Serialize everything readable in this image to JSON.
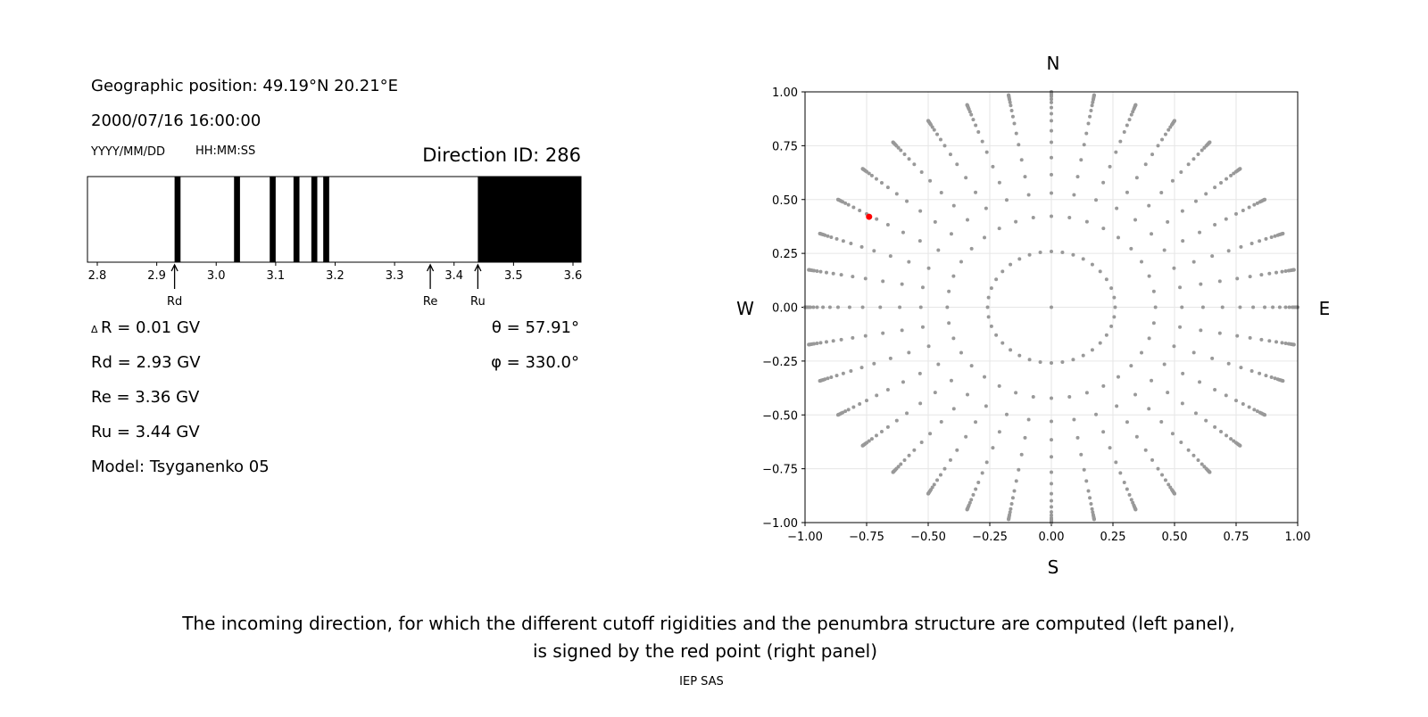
{
  "left_panel": {
    "geo_position": "Geographic position: 49.19°N 20.21°E",
    "datetime": "2000/07/16 16:00:00",
    "date_format": "YYYY/MM/DD",
    "time_format": "HH:MM:SS",
    "direction_id": "Direction ID: 286",
    "delta_r": "R = 0.01 GV",
    "delta_symbol": "Δ",
    "rd": "Rd = 2.93 GV",
    "re": "Re = 3.36 GV",
    "ru": "Ru = 3.44 GV",
    "model": "Model: Tsyganenko 05",
    "theta": "θ = 57.91°",
    "phi": "φ = 330.0°"
  },
  "chart_data": [
    {
      "type": "bar",
      "subtype": "penumbra",
      "xlim": [
        2.7835,
        3.6135
      ],
      "xticks": [
        2.8,
        2.9,
        3.0,
        3.1,
        3.2,
        3.3,
        3.4,
        3.5,
        3.6
      ],
      "xtick_labels": [
        "2.8",
        "2.9",
        "3.0",
        "3.1",
        "3.2",
        "3.3",
        "3.4",
        "3.5",
        "3.6"
      ],
      "forbidden_bands": [
        [
          2.93,
          2.94
        ],
        [
          3.03,
          3.04
        ],
        [
          3.09,
          3.1
        ],
        [
          3.13,
          3.14
        ],
        [
          3.16,
          3.17
        ],
        [
          3.18,
          3.19
        ],
        [
          3.44,
          3.6135
        ]
      ],
      "band_color": "#000000",
      "markers": [
        {
          "label": "Rd",
          "value": 2.93
        },
        {
          "label": "Re",
          "value": 3.36
        },
        {
          "label": "Ru",
          "value": 3.44
        }
      ]
    },
    {
      "type": "scatter",
      "xlim": [
        -1,
        1
      ],
      "ylim": [
        -1,
        1
      ],
      "ticks": [
        -1,
        -0.75,
        -0.5,
        -0.25,
        0,
        0.25,
        0.5,
        0.75,
        1
      ],
      "tick_labels": [
        "−1.00",
        "−0.75",
        "−0.50",
        "−0.25",
        "0.00",
        "0.25",
        "0.50",
        "0.75",
        "1.00"
      ],
      "grid": true,
      "compass": {
        "north": "N",
        "south": "S",
        "west": "W",
        "east": "E"
      },
      "direction_grid": {
        "azimuth_step_deg": 10,
        "zenith_angles_deg": [
          15,
          25,
          32,
          38,
          44,
          50,
          55,
          60,
          64,
          68,
          72,
          75,
          78,
          80,
          82,
          84,
          86,
          88,
          90
        ],
        "color": "#999999",
        "center_point": [
          0,
          0
        ]
      },
      "selected_point": {
        "x": -0.74,
        "y": 0.42,
        "color": "#ff0000"
      }
    }
  ],
  "caption": {
    "line1": "The incoming direction, for which the different cutoff rigidities and the penumbra structure are computed (left panel),",
    "line2": "is signed by the red point (right panel)"
  },
  "footer": "IEP SAS"
}
